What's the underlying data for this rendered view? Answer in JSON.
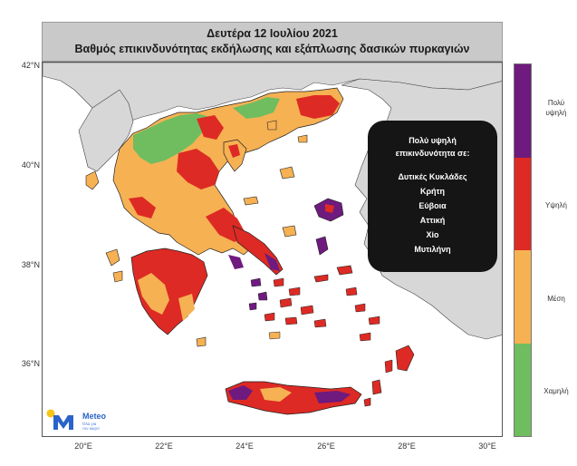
{
  "header": {
    "date": "Δευτέρα 12 Ιουλίου 2021",
    "subtitle": "Βαθμός επικινδυνότητας εκδήλωσης και εξάπλωσης δασικών πυρκαγιών"
  },
  "axes": {
    "latitudes": [
      "42°N",
      "40°N",
      "38°N",
      "36°N"
    ],
    "longitudes": [
      "20°E",
      "22°E",
      "24°E",
      "26°E",
      "28°E",
      "30°E"
    ]
  },
  "callout": {
    "heading_line1": "Πολύ υψηλή",
    "heading_line2": "επικινδυνότητα σε:",
    "areas": [
      "Δυτικές Κυκλάδες",
      "Κρήτη",
      "Εύβοια",
      "Αττική",
      "Χίο",
      "Μυτιλήνη"
    ]
  },
  "legend": {
    "levels": [
      {
        "label_line1": "Πολύ",
        "label_line2": "υψηλή",
        "color": "#6e1a7e"
      },
      {
        "label_line1": "Υψηλή",
        "label_line2": "",
        "color": "#dd2a24"
      },
      {
        "label_line1": "Μέση",
        "label_line2": "",
        "color": "#f6b153"
      },
      {
        "label_line1": "Χαμηλή",
        "label_line2": "",
        "color": "#6fbd5f"
      }
    ]
  },
  "logo": {
    "brand": "Meteo",
    "tagline_line1": "Όλα για",
    "tagline_line2": "τον καιρό",
    "color": "#2a63c9"
  },
  "colors": {
    "land_other": "#d7d7d7",
    "sea": "#ffffff",
    "very_high": "#6e1a7e",
    "high": "#dd2a24",
    "medium": "#f6b153",
    "low": "#6fbd5f",
    "dark_high": "#a5272b"
  }
}
